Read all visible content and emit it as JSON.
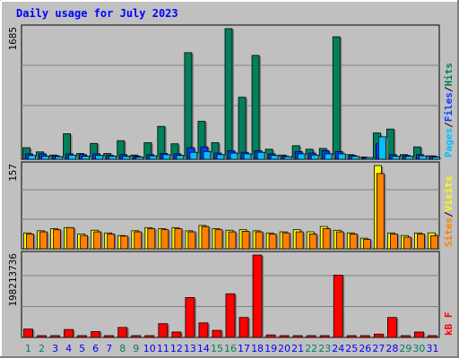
{
  "title": "Daily usage for July 2023",
  "chart_data": [
    {
      "type": "bar",
      "panel": "hits-files-pages",
      "y_tick_label": "1685",
      "right_labels": [
        {
          "text": "Pages",
          "color": "#00c0ff"
        },
        {
          "text": "Files",
          "color": "#0040ff"
        },
        {
          "text": "Hits",
          "color": "#00805c"
        }
      ],
      "categories": [
        "1",
        "2",
        "3",
        "4",
        "5",
        "6",
        "7",
        "8",
        "9",
        "10",
        "11",
        "12",
        "13",
        "14",
        "15",
        "16",
        "17",
        "18",
        "19",
        "20",
        "21",
        "22",
        "23",
        "24",
        "25",
        "26",
        "27",
        "28",
        "29",
        "30",
        "31"
      ],
      "ylim": [
        0,
        1685
      ],
      "series": [
        {
          "name": "Hits",
          "color": "#00805c",
          "values": [
            150,
            95,
            55,
            330,
            75,
            205,
            75,
            240,
            55,
            215,
            425,
            200,
            1375,
            490,
            215,
            1685,
            800,
            1340,
            130,
            55,
            175,
            130,
            140,
            1580,
            60,
            30,
            340,
            390,
            60,
            160,
            45
          ]
        },
        {
          "name": "Files",
          "color": "#0040ff",
          "values": [
            70,
            70,
            45,
            70,
            60,
            70,
            50,
            60,
            40,
            60,
            75,
            70,
            150,
            160,
            80,
            110,
            90,
            110,
            70,
            40,
            100,
            80,
            110,
            100,
            50,
            20,
            200,
            60,
            50,
            60,
            40
          ]
        },
        {
          "name": "Pages",
          "color": "#00c0ff",
          "values": [
            50,
            40,
            35,
            55,
            40,
            50,
            40,
            40,
            30,
            45,
            60,
            50,
            90,
            100,
            60,
            80,
            70,
            90,
            50,
            35,
            70,
            55,
            70,
            70,
            40,
            20,
            290,
            40,
            40,
            45,
            30
          ]
        }
      ]
    },
    {
      "type": "bar",
      "panel": "visits-sites",
      "y_tick_label": "157",
      "right_labels": [
        {
          "text": "Sites",
          "color": "#ff8000"
        },
        {
          "text": "Visits",
          "color": "#ffff00"
        }
      ],
      "categories": [
        "1",
        "2",
        "3",
        "4",
        "5",
        "6",
        "7",
        "8",
        "9",
        "10",
        "11",
        "12",
        "13",
        "14",
        "15",
        "16",
        "17",
        "18",
        "19",
        "20",
        "21",
        "22",
        "23",
        "24",
        "25",
        "26",
        "27",
        "28",
        "29",
        "30",
        "31"
      ],
      "ylim": [
        0,
        157
      ],
      "series": [
        {
          "name": "Visits",
          "color": "#ffff00",
          "values": [
            30,
            34,
            38,
            40,
            28,
            35,
            30,
            25,
            34,
            40,
            38,
            40,
            34,
            44,
            38,
            35,
            36,
            34,
            30,
            32,
            36,
            32,
            42,
            35,
            30,
            20,
            157,
            30,
            25,
            30,
            30
          ]
        },
        {
          "name": "Sites",
          "color": "#ff8000",
          "values": [
            28,
            32,
            36,
            40,
            25,
            32,
            28,
            24,
            32,
            38,
            36,
            38,
            32,
            42,
            36,
            32,
            33,
            32,
            28,
            30,
            32,
            28,
            38,
            32,
            28,
            18,
            142,
            28,
            22,
            28,
            25
          ]
        }
      ]
    },
    {
      "type": "bar",
      "panel": "kbytes",
      "y_tick_label": "198213736",
      "right_labels": [
        {
          "text": "kB F",
          "color": "#ff0000"
        }
      ],
      "categories": [
        "1",
        "2",
        "3",
        "4",
        "5",
        "6",
        "7",
        "8",
        "9",
        "10",
        "11",
        "12",
        "13",
        "14",
        "15",
        "16",
        "17",
        "18",
        "19",
        "20",
        "21",
        "22",
        "23",
        "24",
        "25",
        "26",
        "27",
        "28",
        "29",
        "30",
        "31"
      ],
      "ylim": [
        0,
        198213736
      ],
      "series": [
        {
          "name": "kB F",
          "color": "#ff0000",
          "values": [
            20000000,
            2000000,
            2000000,
            19000000,
            4000000,
            14000000,
            3000000,
            24000000,
            3000000,
            4000000,
            33000000,
            13000000,
            96000000,
            35000000,
            17000000,
            105000000,
            48000000,
            198213736,
            6000000,
            2000000,
            2000000,
            4000000,
            3000000,
            150000000,
            3000000,
            2000000,
            8000000,
            48000000,
            3000000,
            13000000,
            4000000
          ]
        }
      ]
    }
  ],
  "day_label_colors": {
    "weekday": "#0000ff",
    "weekend": "#00805c",
    "weekend_days": [
      "1",
      "2",
      "8",
      "9",
      "15",
      "16",
      "22",
      "23",
      "29",
      "30"
    ]
  }
}
